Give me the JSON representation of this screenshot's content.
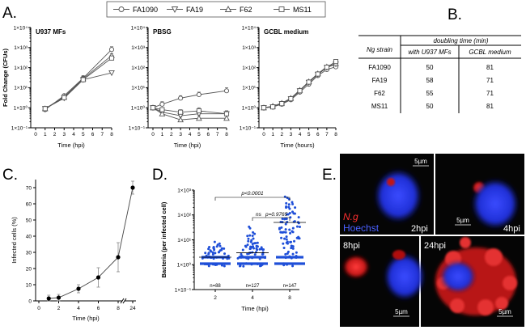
{
  "panels": {
    "A": {
      "letter": "A.",
      "legend": [
        "FA1090",
        "FA19",
        "F62",
        "MS11"
      ],
      "markers": [
        "circle",
        "triangle-down",
        "triangle-up",
        "square"
      ],
      "ylabel": "Fold Change (CFUs)",
      "y_ticks": [
        "1×10⁻¹",
        "1×10⁰",
        "1×10¹",
        "1×10²",
        "1×10³",
        "1×10⁴"
      ],
      "x_ticks": [
        "0",
        "1",
        "2",
        "3",
        "4",
        "5",
        "6",
        "7",
        "8"
      ],
      "subplots": [
        {
          "title": "U937 MFs",
          "xlabel": "Time (hpi)"
        },
        {
          "title": "PBSG",
          "xlabel": "Time (hpi)"
        },
        {
          "title": "GCBL medium",
          "xlabel": "Time (hours)"
        }
      ]
    },
    "B": {
      "letter": "B.",
      "header_group": "doubling time (min)",
      "col0": "Ng strain",
      "col1": "with U937 MFs",
      "col2": "GCBL medium",
      "rows": [
        {
          "strain": "FA1090",
          "u937": "50",
          "gcbl": "81"
        },
        {
          "strain": "FA19",
          "u937": "58",
          "gcbl": "71"
        },
        {
          "strain": "F62",
          "u937": "55",
          "gcbl": "71"
        },
        {
          "strain": "MS11",
          "u937": "50",
          "gcbl": "81"
        }
      ]
    },
    "C": {
      "letter": "C.",
      "ylabel": "Infected cells (%)",
      "xlabel": "Time (hpi)",
      "y_ticks": [
        "0",
        "10",
        "20",
        "30",
        "40",
        "50",
        "60",
        "70"
      ],
      "x_ticks": [
        "0",
        "2",
        "4",
        "6",
        "8",
        "24"
      ]
    },
    "D": {
      "letter": "D.",
      "ylabel": "Bacteria (per infected cell)",
      "xlabel": "Time (hpi)",
      "y_ticks": [
        "1×10⁻¹",
        "1×10⁰",
        "1×10¹",
        "1×10²",
        "1×10³"
      ],
      "x_ticks": [
        "2",
        "4",
        "8"
      ],
      "counts": [
        "n=88",
        "n=127",
        "n=147"
      ],
      "sig_ns": "ns",
      "sig_ns_p": "p=0.9765",
      "sig_top": "p<0.0001"
    },
    "E": {
      "letter": "E.",
      "stain_ng": "N.g",
      "stain_hoechst": "Hoechst",
      "scale": "5µm",
      "tiles": [
        "2hpi",
        "4hpi",
        "8hpi",
        "24hpi"
      ]
    }
  },
  "chart_data": [
    {
      "type": "line",
      "title": "U937 MFs",
      "xlabel": "Time (hpi)",
      "ylabel": "Fold Change (CFUs)",
      "yscale": "log",
      "ylim": [
        0.1,
        10000
      ],
      "x": [
        1,
        3,
        5,
        8
      ],
      "series": [
        {
          "name": "FA1090",
          "values": [
            0.8,
            4,
            30,
            800
          ],
          "errors": [
            0,
            0.5,
            10,
            300
          ]
        },
        {
          "name": "FA19",
          "values": [
            0.9,
            3,
            25,
            55
          ],
          "errors": [
            0,
            0.5,
            8,
            10
          ]
        },
        {
          "name": "F62",
          "values": [
            0.9,
            3.5,
            28,
            400
          ],
          "errors": [
            0,
            0.5,
            8,
            100
          ]
        },
        {
          "name": "MS11",
          "values": [
            0.9,
            3.2,
            25,
            300
          ],
          "errors": [
            0,
            0.5,
            8,
            80
          ]
        }
      ]
    },
    {
      "type": "line",
      "title": "PBSG",
      "xlabel": "Time (hpi)",
      "ylabel": "Fold Change (CFUs)",
      "yscale": "log",
      "ylim": [
        0.1,
        10000
      ],
      "x": [
        0,
        1,
        3,
        5,
        8
      ],
      "series": [
        {
          "name": "FA1090",
          "values": [
            1,
            1.5,
            3,
            4.5,
            7
          ],
          "errors": [
            0.3,
            0.5,
            1,
            1.5,
            3
          ]
        },
        {
          "name": "FA19",
          "values": [
            1,
            0.6,
            0.4,
            0.5,
            0.5
          ],
          "errors": [
            0.3,
            0.2,
            0.1,
            0.2,
            0.2
          ]
        },
        {
          "name": "F62",
          "values": [
            1,
            0.5,
            0.25,
            0.3,
            0.3
          ],
          "errors": [
            0.3,
            0.2,
            0.1,
            0.1,
            0.1
          ]
        },
        {
          "name": "MS11",
          "values": [
            1,
            0.8,
            0.6,
            0.7,
            0.5
          ],
          "errors": [
            0.3,
            0.2,
            0.2,
            0.3,
            0.2
          ]
        }
      ]
    },
    {
      "type": "line",
      "title": "GCBL medium",
      "xlabel": "Time (hours)",
      "ylabel": "Fold Change (CFUs)",
      "yscale": "log",
      "ylim": [
        0.1,
        10000
      ],
      "x": [
        0,
        1,
        2,
        3,
        4,
        5,
        6,
        7,
        8
      ],
      "series": [
        {
          "name": "FA1090",
          "values": [
            1,
            1.1,
            1.5,
            2.5,
            6,
            15,
            40,
            80,
            110
          ]
        },
        {
          "name": "FA19",
          "values": [
            1,
            1.1,
            1.6,
            2.8,
            7,
            18,
            45,
            100,
            150
          ]
        },
        {
          "name": "F62",
          "values": [
            1,
            1.2,
            1.7,
            3,
            7.5,
            20,
            50,
            110,
            160
          ]
        },
        {
          "name": "MS11",
          "values": [
            1,
            1.1,
            1.6,
            2.8,
            7,
            19,
            48,
            105,
            200
          ]
        }
      ]
    },
    {
      "type": "line",
      "title": "",
      "xlabel": "Time (hpi)",
      "ylabel": "Infected cells (%)",
      "ylim": [
        0,
        75
      ],
      "x": [
        "1",
        "2",
        "4",
        "6",
        "8",
        "24"
      ],
      "values": [
        1.5,
        2,
        7.5,
        14.5,
        27,
        70
      ],
      "errors": [
        2,
        2,
        2.5,
        6,
        9,
        4
      ]
    },
    {
      "type": "scatter",
      "title": "",
      "xlabel": "Time (hpi)",
      "ylabel": "Bacteria (per infected cell)",
      "yscale": "log",
      "ylim": [
        0.1,
        1000
      ],
      "categories": [
        "2",
        "4",
        "8"
      ],
      "n": [
        88,
        127,
        147
      ],
      "median": [
        2,
        3,
        50
      ]
    }
  ]
}
